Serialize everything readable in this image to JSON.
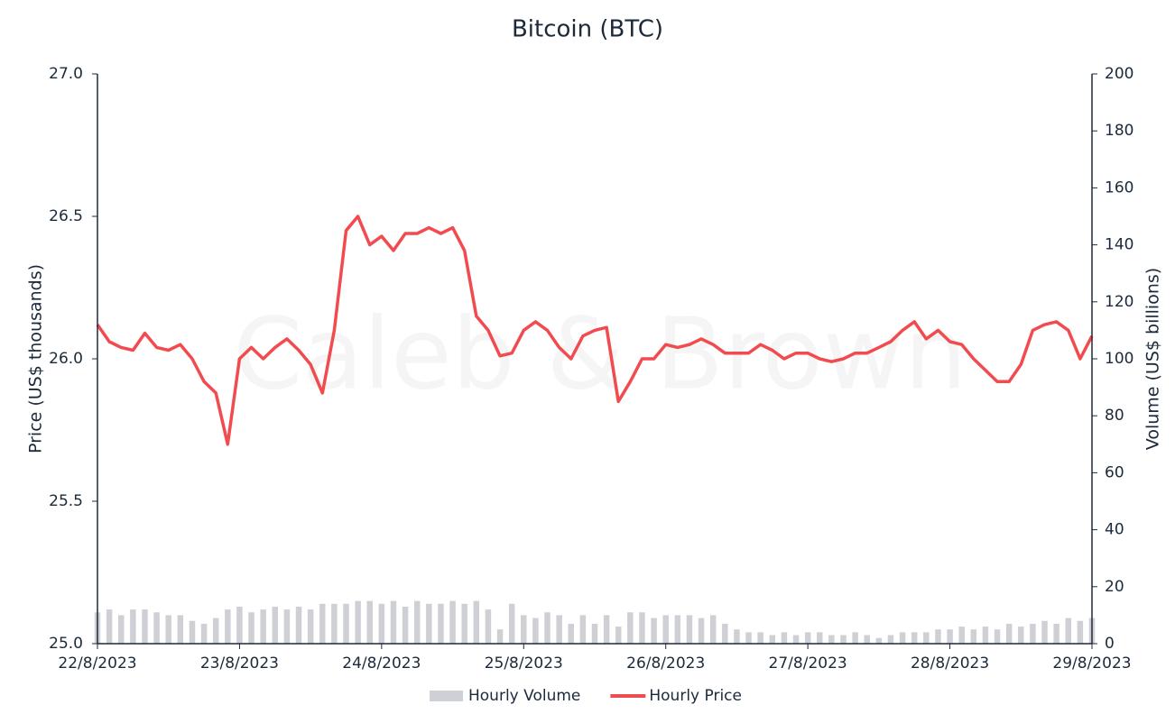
{
  "chart_data": {
    "type": "line",
    "title": "Bitcoin (BTC)",
    "watermark": "Caleb & Brown",
    "ylabel": "Price (US$ thousands)",
    "y2label": "Volume (US$ billions)",
    "x": [
      0,
      2,
      4,
      6,
      8,
      10,
      12,
      14,
      16,
      18,
      20,
      22,
      24,
      26,
      28,
      30,
      32,
      34,
      36,
      38,
      40,
      42,
      44,
      46,
      48,
      50,
      52,
      54,
      56,
      58,
      60,
      62,
      64,
      66,
      68,
      70,
      72,
      74,
      76,
      78,
      80,
      82,
      84,
      86,
      88,
      90,
      92,
      94,
      96,
      98,
      100,
      102,
      104,
      106,
      108,
      110,
      112,
      114,
      116,
      118,
      120,
      122,
      124,
      126,
      128,
      130,
      132,
      134,
      136,
      138,
      140,
      142,
      144,
      146,
      148,
      150,
      152,
      154,
      156,
      158,
      160,
      162,
      164,
      166,
      168
    ],
    "xlim": [
      0,
      168
    ],
    "xticks": [
      {
        "value": 0,
        "label": "22/8/2023"
      },
      {
        "value": 24,
        "label": "23/8/2023"
      },
      {
        "value": 48,
        "label": "24/8/2023"
      },
      {
        "value": 72,
        "label": "25/8/2023"
      },
      {
        "value": 96,
        "label": "26/8/2023"
      },
      {
        "value": 120,
        "label": "27/8/2023"
      },
      {
        "value": 144,
        "label": "28/8/2023"
      },
      {
        "value": 168,
        "label": "29/8/2023"
      }
    ],
    "ylim": [
      25,
      27
    ],
    "yticks": [
      {
        "value": 25,
        "label": "25.0"
      },
      {
        "value": 25.5,
        "label": "25.5"
      },
      {
        "value": 26,
        "label": "26.0"
      },
      {
        "value": 26.5,
        "label": "26.5"
      },
      {
        "value": 27,
        "label": "27.0"
      }
    ],
    "y2lim": [
      0,
      200
    ],
    "y2ticks": [
      0,
      20,
      40,
      60,
      80,
      100,
      120,
      140,
      160,
      180,
      200
    ],
    "series": [
      {
        "name": "Hourly Volume",
        "kind": "bar",
        "axis": "y2",
        "color": "#cfd0d5",
        "values": [
          11,
          12,
          10,
          12,
          12,
          11,
          10,
          10,
          8,
          7,
          9,
          12,
          13,
          11,
          12,
          13,
          12,
          13,
          12,
          14,
          14,
          14,
          15,
          15,
          14,
          15,
          13,
          15,
          14,
          14,
          15,
          14,
          15,
          12,
          5,
          14,
          10,
          9,
          11,
          10,
          7,
          10,
          7,
          10,
          6,
          11,
          11,
          9,
          10,
          10,
          10,
          9,
          10,
          7,
          5,
          4,
          4,
          3,
          4,
          3,
          4,
          4,
          3,
          3,
          4,
          3,
          2,
          3,
          4,
          4,
          4,
          5,
          5,
          6,
          5,
          6,
          5,
          7,
          6,
          7,
          8,
          7,
          9,
          8,
          9
        ]
      },
      {
        "name": "Hourly Price",
        "kind": "line",
        "color": "#f24b4f",
        "values": [
          26.12,
          26.06,
          26.04,
          26.03,
          26.09,
          26.04,
          26.03,
          26.05,
          26.0,
          25.92,
          25.88,
          25.7,
          26.0,
          26.04,
          26.0,
          26.04,
          26.07,
          26.03,
          25.98,
          25.88,
          26.1,
          26.45,
          26.5,
          26.4,
          26.43,
          26.38,
          26.44,
          26.44,
          26.46,
          26.44,
          26.46,
          26.38,
          26.15,
          26.1,
          26.01,
          26.02,
          26.1,
          26.13,
          26.1,
          26.04,
          26.0,
          26.08,
          26.1,
          26.11,
          25.85,
          25.92,
          26.0,
          26.0,
          26.05,
          26.04,
          26.05,
          26.07,
          26.05,
          26.02,
          26.02,
          26.02,
          26.05,
          26.03,
          26.0,
          26.02,
          26.02,
          26.0,
          25.99,
          26.0,
          26.02,
          26.02,
          26.04,
          26.06,
          26.1,
          26.13,
          26.07,
          26.1,
          26.06,
          26.05,
          26.0,
          25.96,
          25.92,
          25.92,
          25.98,
          26.1,
          26.12,
          26.13,
          26.1,
          26.0,
          26.08
        ]
      }
    ]
  }
}
